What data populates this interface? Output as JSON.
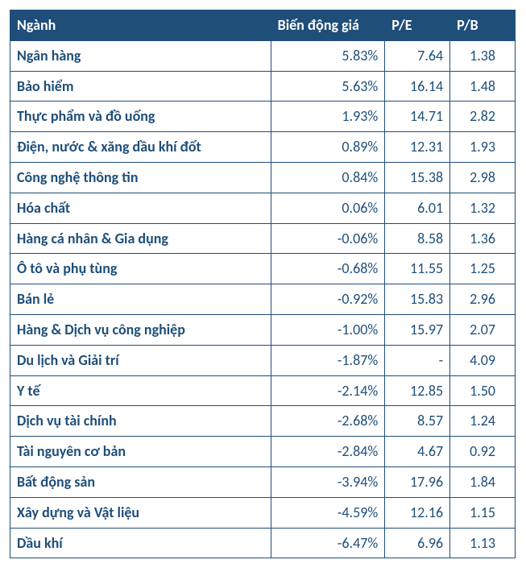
{
  "table": {
    "header_bg": "#1f4e79",
    "header_text_color": "#ffffff",
    "cell_text_color": "#1f4e79",
    "border_color": "#1f4e79",
    "font_family": "Calibri",
    "font_size_pt": 13,
    "columns": [
      {
        "key": "name",
        "label": "Ngành",
        "align": "left"
      },
      {
        "key": "change",
        "label": "Biến động giá",
        "align": "right"
      },
      {
        "key": "pe",
        "label": "P/E",
        "align": "right"
      },
      {
        "key": "pb",
        "label": "P/B",
        "align": "center"
      }
    ],
    "rows": [
      {
        "name": "Ngân hàng",
        "change": "5.83%",
        "pe": "7.64",
        "pb": "1.38"
      },
      {
        "name": "Bảo hiểm",
        "change": "5.63%",
        "pe": "16.14",
        "pb": "1.48"
      },
      {
        "name": "Thực phẩm và đồ uống",
        "change": "1.93%",
        "pe": "14.71",
        "pb": "2.82"
      },
      {
        "name": "Điện, nước & xăng dầu khí đốt",
        "change": "0.89%",
        "pe": "12.31",
        "pb": "1.93"
      },
      {
        "name": "Công nghệ thông tin",
        "change": "0.84%",
        "pe": "15.38",
        "pb": "2.98"
      },
      {
        "name": "Hóa chất",
        "change": "0.06%",
        "pe": "6.01",
        "pb": "1.32"
      },
      {
        "name": "Hàng cá nhân & Gia dụng",
        "change": "-0.06%",
        "pe": "8.58",
        "pb": "1.36"
      },
      {
        "name": "Ô tô và phụ tùng",
        "change": "-0.68%",
        "pe": "11.55",
        "pb": "1.25"
      },
      {
        "name": "Bán lẻ",
        "change": "-0.92%",
        "pe": "15.83",
        "pb": "2.96"
      },
      {
        "name": "Hàng & Dịch vụ công nghiệp",
        "change": "-1.00%",
        "pe": "15.97",
        "pb": "2.07"
      },
      {
        "name": "Du lịch và Giải trí",
        "change": "-1.87%",
        "pe": "-",
        "pb": "4.09"
      },
      {
        "name": "Y tế",
        "change": "-2.14%",
        "pe": "12.85",
        "pb": "1.50"
      },
      {
        "name": "Dịch vụ tài chính",
        "change": "-2.68%",
        "pe": "8.57",
        "pb": "1.24"
      },
      {
        "name": "Tài nguyên cơ bản",
        "change": "-2.84%",
        "pe": "4.67",
        "pb": "0.92"
      },
      {
        "name": "Bất động sản",
        "change": "-3.94%",
        "pe": "17.96",
        "pb": "1.84"
      },
      {
        "name": "Xây dựng và Vật liệu",
        "change": "-4.59%",
        "pe": "12.16",
        "pb": "1.15"
      },
      {
        "name": "Dầu khí",
        "change": "-6.47%",
        "pe": "6.96",
        "pb": "1.13"
      }
    ]
  }
}
